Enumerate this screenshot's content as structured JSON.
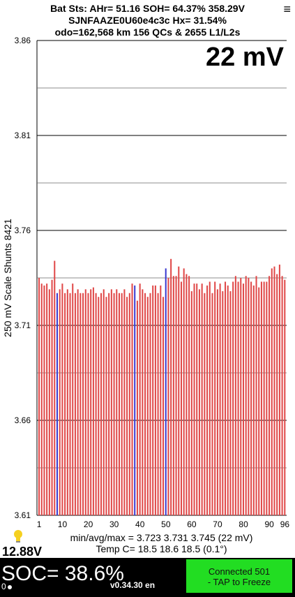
{
  "header": {
    "line1": "Bat Sts:  AHr= 51.16  SOH= 64.37%   358.29V",
    "line2": "SJNFAAZE0U60e4c3c   Hx= 31.54%",
    "line3": "odo=162,568 km  156 QCs & 2655 L1/L2s",
    "menu_icon": "menu-icon"
  },
  "range_label": "22 mV",
  "y_axis_label": "250 mV Scale   Shunts 8421",
  "stats": {
    "minavgmax": "min/avg/max = 3.723 3.731 3.745  (22 mV)",
    "temp": "Temp C= 18.5  18.6  18.5  (0.1°)"
  },
  "voltage": "12.88V",
  "soc": "SOC= 38.6%",
  "soc_sub": "0",
  "version": "v0.34.30 en",
  "connection": {
    "line1": "Connected 501",
    "line2": "- TAP to Freeze"
  },
  "colors": {
    "bar": "#e04848",
    "shunt": "#3a3ad0",
    "button": "#22dd22",
    "bottom_bar": "#000000"
  },
  "chart_data": {
    "type": "bar",
    "ylabel": "250 mV Scale   Shunts 8421",
    "ylim": [
      3.61,
      3.86
    ],
    "yticks": [
      "3.86",
      "3.81",
      "3.76",
      "3.71",
      "3.66",
      "3.61"
    ],
    "xticks": [
      "1",
      "10",
      "20",
      "30",
      "40",
      "50",
      "60",
      "70",
      "80",
      "90",
      "96"
    ],
    "grid": true,
    "shunt_cells": [
      8,
      38,
      50
    ],
    "values": [
      3.735,
      3.732,
      3.731,
      3.732,
      3.729,
      3.734,
      3.744,
      3.727,
      3.729,
      3.732,
      3.727,
      3.729,
      3.727,
      3.732,
      3.727,
      3.729,
      3.727,
      3.727,
      3.729,
      3.727,
      3.729,
      3.73,
      3.727,
      3.725,
      3.727,
      3.729,
      3.725,
      3.727,
      3.729,
      3.727,
      3.729,
      3.727,
      3.727,
      3.729,
      3.725,
      3.727,
      3.732,
      3.731,
      3.723,
      3.732,
      3.729,
      3.727,
      3.725,
      3.727,
      3.731,
      3.731,
      3.727,
      3.731,
      3.725,
      3.74,
      3.735,
      3.745,
      3.736,
      3.736,
      3.741,
      3.733,
      3.74,
      3.737,
      3.736,
      3.728,
      3.732,
      3.732,
      3.729,
      3.732,
      3.727,
      3.731,
      3.733,
      3.727,
      3.733,
      3.729,
      3.732,
      3.728,
      3.733,
      3.731,
      3.728,
      3.733,
      3.736,
      3.733,
      3.735,
      3.732,
      3.736,
      3.735,
      3.733,
      3.731,
      3.736,
      3.73,
      3.733,
      3.733,
      3.733,
      3.736,
      3.74,
      3.741,
      3.737,
      3.742,
      3.736,
      3.734
    ]
  }
}
